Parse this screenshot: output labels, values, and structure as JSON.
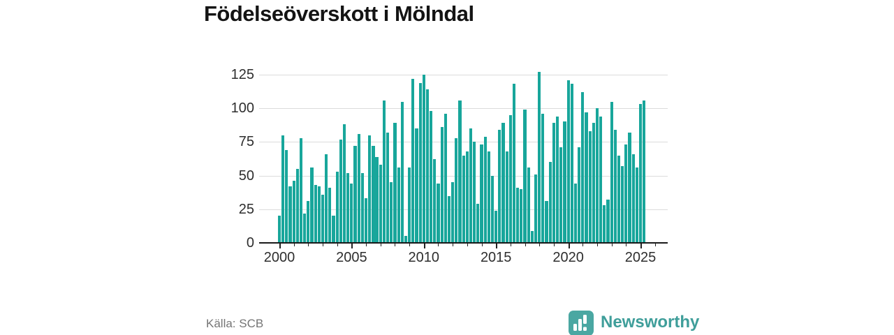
{
  "title": "Födelseöverskott i Mölndal",
  "source": {
    "text": "Källa: SCB"
  },
  "brand": {
    "name": "Newsworthy",
    "icon": "newsworthy-bar-chart-bubble-icon",
    "color": "#3f9e9a"
  },
  "colors": {
    "bar": "#18a69b",
    "grid": "#dbdbdb",
    "axis": "#1a1a1a",
    "tick_label": "#2e2e2e",
    "title": "#141414",
    "source_text": "#757575",
    "brand_teal": "#3f9e9a"
  },
  "chart_data": {
    "type": "bar",
    "title": "Födelseöverskott i Mölndal",
    "frequency": "quarterly",
    "start": "2000 Q1",
    "end": "2025 Q2",
    "values": [
      20,
      80,
      69,
      42,
      46,
      55,
      78,
      22,
      31,
      56,
      43,
      42,
      36,
      66,
      41,
      20,
      53,
      77,
      88,
      52,
      44,
      72,
      81,
      52,
      33,
      80,
      72,
      64,
      58,
      106,
      82,
      45,
      89,
      56,
      105,
      5,
      56,
      122,
      85,
      119,
      125,
      114,
      98,
      62,
      44,
      86,
      96,
      35,
      45,
      78,
      106,
      65,
      68,
      85,
      75,
      29,
      73,
      79,
      68,
      50,
      24,
      84,
      89,
      68,
      95,
      118,
      41,
      40,
      99,
      56,
      9,
      51,
      127,
      96,
      31,
      60,
      89,
      94,
      71,
      90,
      121,
      118,
      44,
      71,
      112,
      97,
      83,
      89,
      100,
      94,
      28,
      32,
      105,
      84,
      65,
      57,
      73,
      82,
      66,
      56,
      103,
      106
    ],
    "xlabel": "",
    "ylabel": "",
    "x_tick_labels": [
      "2000",
      "2005",
      "2010",
      "2015",
      "2020",
      "2025"
    ],
    "x_minor_ticks_every_years": 1,
    "y_ticks": [
      0,
      25,
      50,
      75,
      100,
      125
    ],
    "ylim": [
      0,
      130
    ],
    "grid": "horizontal",
    "legend": "none",
    "bar_color": "#18a69b"
  }
}
